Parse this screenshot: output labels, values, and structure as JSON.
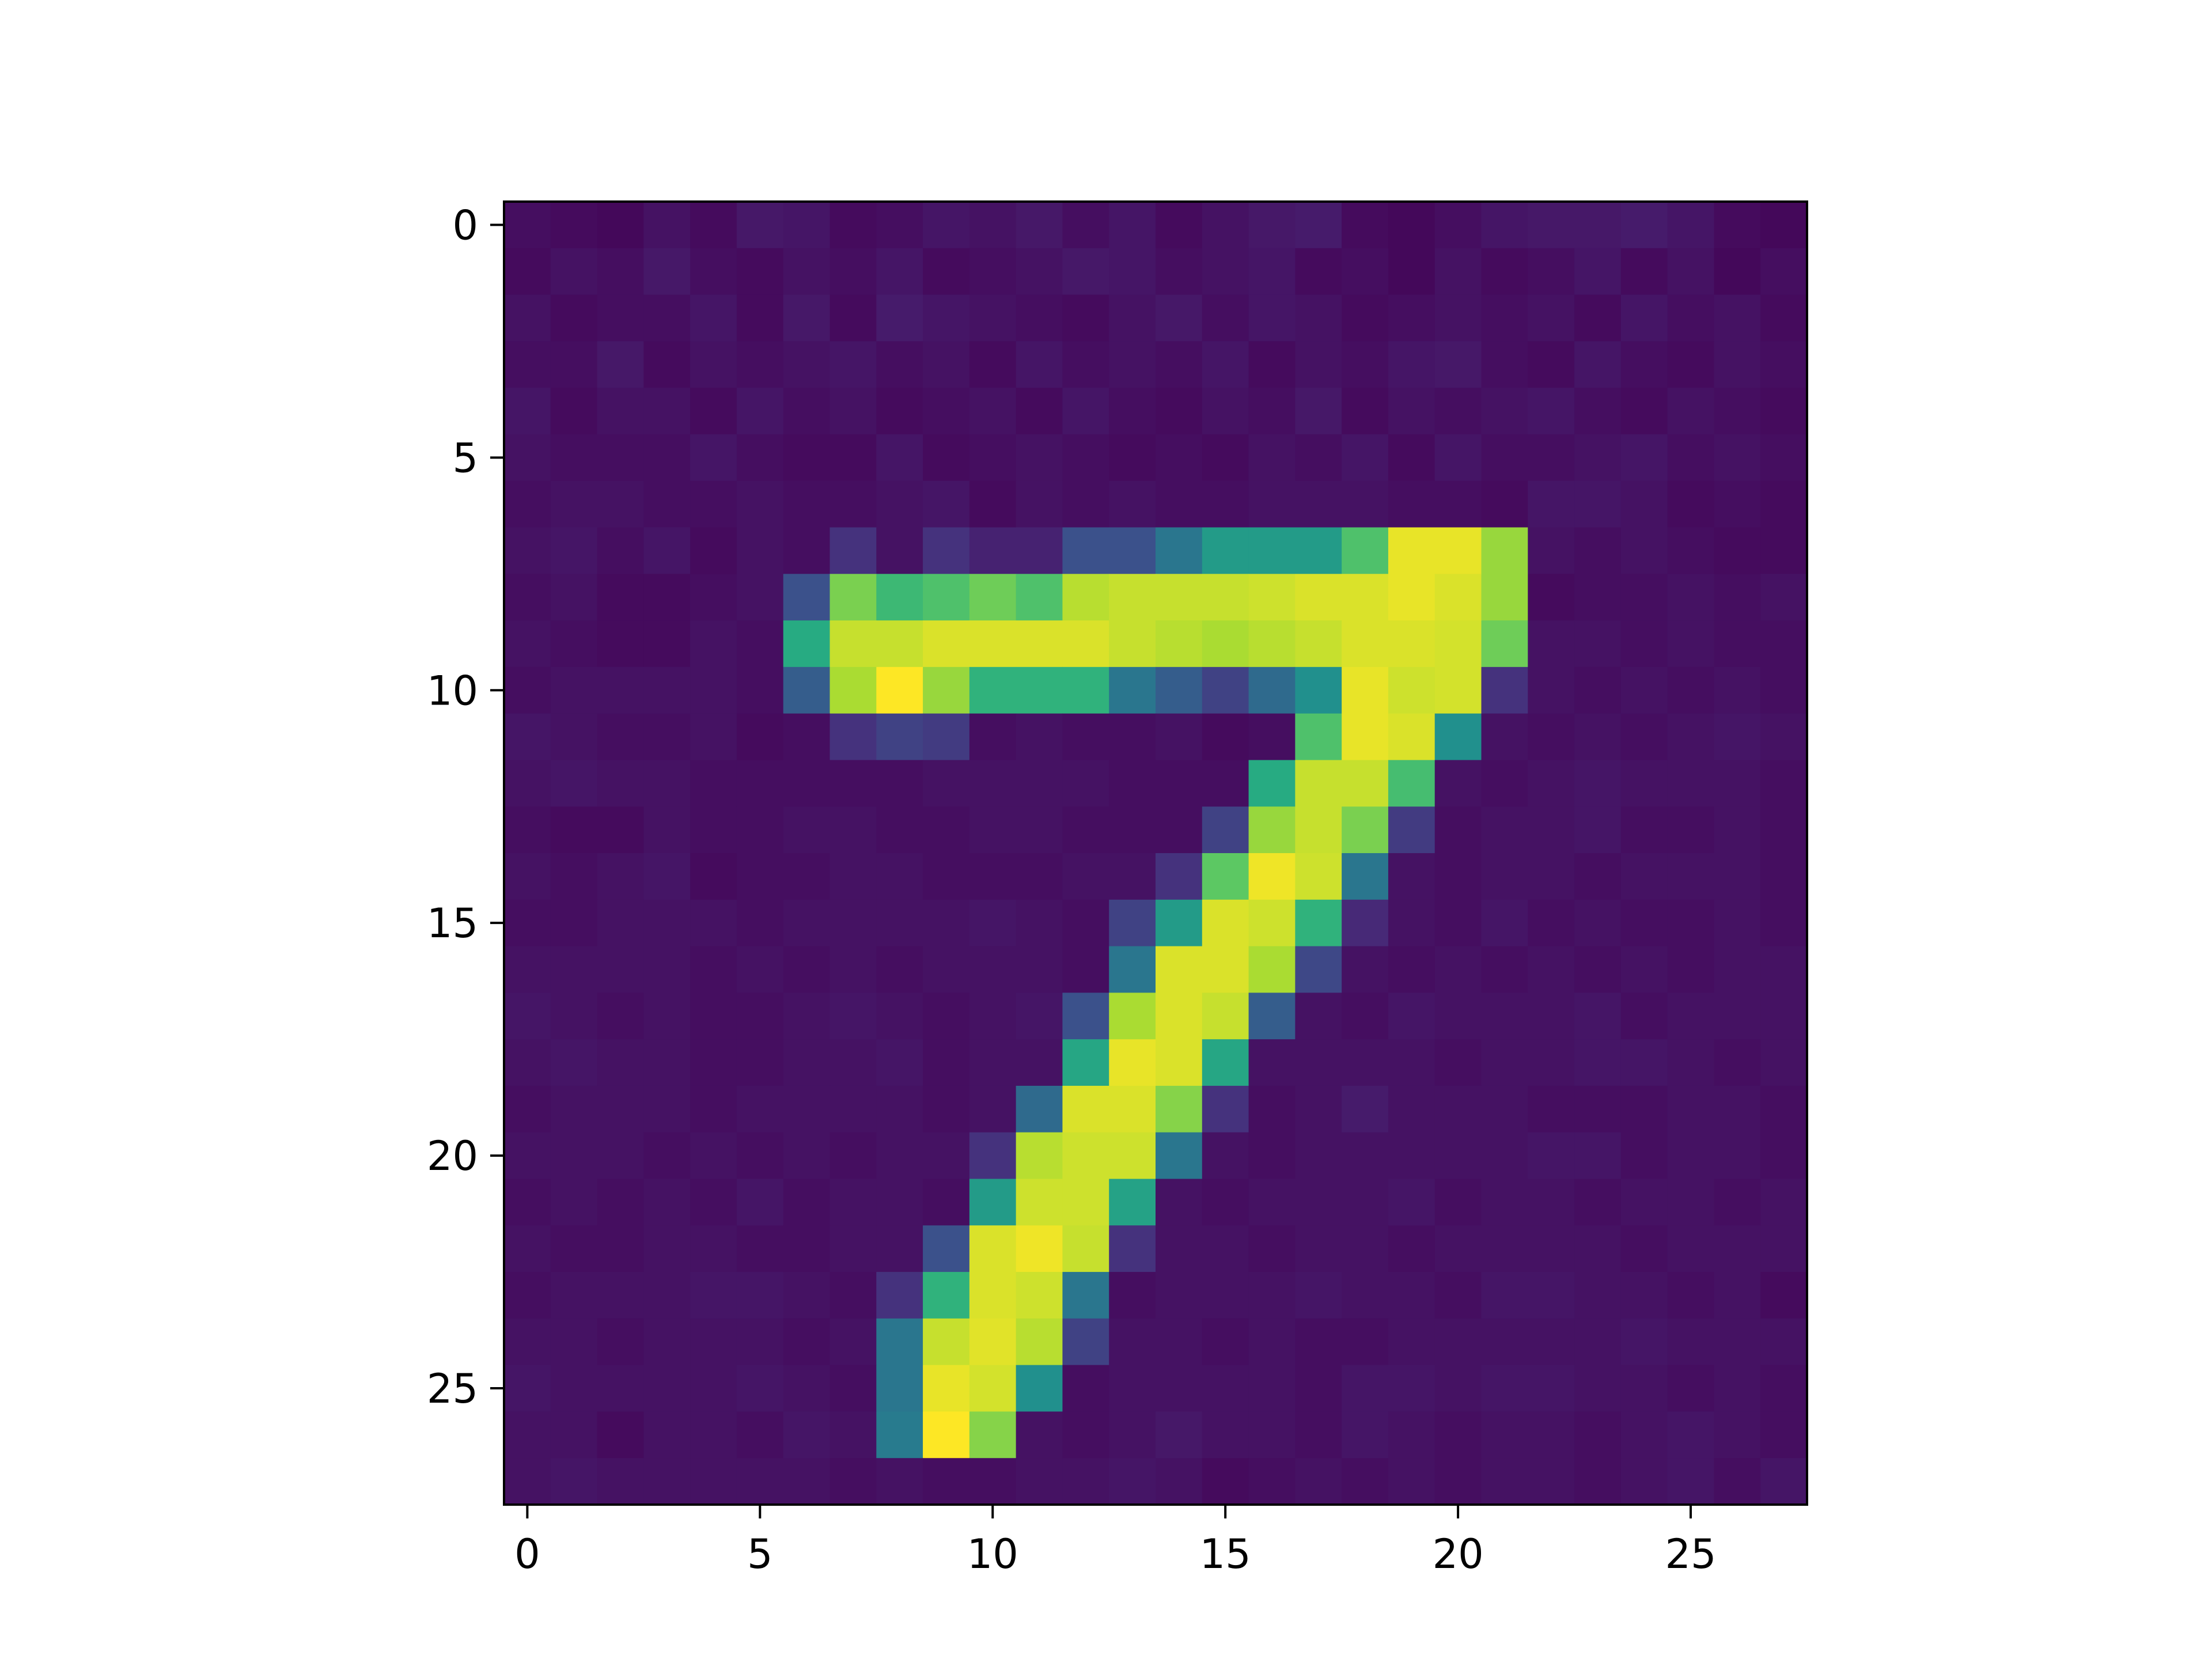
{
  "chart_data": {
    "type": "heatmap",
    "colormap": "viridis",
    "rows": 28,
    "cols": 28,
    "xlim": [
      -0.5,
      27.5
    ],
    "ylim": [
      27.5,
      -0.5
    ],
    "x_ticks": [
      0,
      5,
      10,
      15,
      20,
      25
    ],
    "y_ticks": [
      0,
      5,
      10,
      15,
      20,
      25
    ],
    "x_tick_labels": [
      "0",
      "5",
      "10",
      "15",
      "20",
      "25"
    ],
    "y_tick_labels": [
      "0",
      "5",
      "10",
      "15",
      "20",
      "25"
    ],
    "grid": false,
    "background_level": 0.04,
    "values": [
      [
        0.04,
        0.03,
        0.02,
        0.05,
        0.03,
        0.07,
        0.06,
        0.03,
        0.04,
        0.06,
        0.05,
        0.07,
        0.04,
        0.06,
        0.03,
        0.05,
        0.07,
        0.08,
        0.03,
        0.02,
        0.04,
        0.06,
        0.07,
        0.07,
        0.08,
        0.06,
        0.03,
        0.02
      ],
      [
        0.03,
        0.05,
        0.04,
        0.07,
        0.04,
        0.03,
        0.05,
        0.04,
        0.06,
        0.03,
        0.04,
        0.05,
        0.07,
        0.06,
        0.04,
        0.05,
        0.06,
        0.03,
        0.04,
        0.02,
        0.05,
        0.03,
        0.04,
        0.06,
        0.03,
        0.05,
        0.02,
        0.04
      ],
      [
        0.05,
        0.03,
        0.04,
        0.04,
        0.06,
        0.03,
        0.07,
        0.03,
        0.08,
        0.06,
        0.05,
        0.04,
        0.03,
        0.05,
        0.07,
        0.04,
        0.06,
        0.05,
        0.03,
        0.04,
        0.05,
        0.04,
        0.05,
        0.03,
        0.06,
        0.04,
        0.05,
        0.03
      ],
      [
        0.04,
        0.04,
        0.07,
        0.03,
        0.05,
        0.04,
        0.05,
        0.06,
        0.04,
        0.05,
        0.03,
        0.06,
        0.04,
        0.05,
        0.04,
        0.06,
        0.03,
        0.05,
        0.04,
        0.06,
        0.07,
        0.04,
        0.03,
        0.06,
        0.04,
        0.03,
        0.05,
        0.04
      ],
      [
        0.06,
        0.03,
        0.05,
        0.05,
        0.03,
        0.06,
        0.04,
        0.05,
        0.03,
        0.04,
        0.05,
        0.03,
        0.06,
        0.04,
        0.03,
        0.05,
        0.04,
        0.07,
        0.03,
        0.05,
        0.04,
        0.05,
        0.06,
        0.04,
        0.03,
        0.05,
        0.04,
        0.03
      ],
      [
        0.05,
        0.04,
        0.04,
        0.04,
        0.06,
        0.04,
        0.03,
        0.03,
        0.06,
        0.03,
        0.04,
        0.05,
        0.04,
        0.03,
        0.04,
        0.03,
        0.05,
        0.04,
        0.06,
        0.03,
        0.06,
        0.04,
        0.04,
        0.05,
        0.06,
        0.04,
        0.05,
        0.04
      ],
      [
        0.04,
        0.05,
        0.05,
        0.04,
        0.04,
        0.05,
        0.04,
        0.04,
        0.05,
        0.06,
        0.03,
        0.05,
        0.04,
        0.05,
        0.04,
        0.04,
        0.05,
        0.05,
        0.05,
        0.04,
        0.04,
        0.03,
        0.06,
        0.06,
        0.05,
        0.03,
        0.04,
        0.03
      ],
      [
        0.05,
        0.06,
        0.04,
        0.06,
        0.03,
        0.05,
        0.04,
        0.15,
        0.05,
        0.15,
        0.1,
        0.1,
        0.25,
        0.25,
        0.4,
        0.55,
        0.55,
        0.55,
        0.72,
        0.97,
        0.97,
        0.85,
        0.05,
        0.04,
        0.05,
        0.04,
        0.03,
        0.03
      ],
      [
        0.04,
        0.05,
        0.03,
        0.03,
        0.04,
        0.05,
        0.25,
        0.8,
        0.68,
        0.72,
        0.78,
        0.72,
        0.9,
        0.92,
        0.92,
        0.92,
        0.93,
        0.95,
        0.95,
        0.97,
        0.95,
        0.85,
        0.03,
        0.04,
        0.04,
        0.05,
        0.04,
        0.05
      ],
      [
        0.05,
        0.04,
        0.03,
        0.03,
        0.05,
        0.04,
        0.62,
        0.92,
        0.92,
        0.95,
        0.95,
        0.95,
        0.95,
        0.92,
        0.9,
        0.88,
        0.9,
        0.92,
        0.95,
        0.95,
        0.94,
        0.78,
        0.05,
        0.05,
        0.04,
        0.05,
        0.04,
        0.04
      ],
      [
        0.04,
        0.05,
        0.05,
        0.05,
        0.05,
        0.04,
        0.3,
        0.88,
        1.0,
        0.85,
        0.65,
        0.65,
        0.65,
        0.4,
        0.3,
        0.2,
        0.35,
        0.5,
        0.97,
        0.93,
        0.94,
        0.15,
        0.05,
        0.04,
        0.05,
        0.04,
        0.05,
        0.04
      ],
      [
        0.06,
        0.05,
        0.04,
        0.04,
        0.05,
        0.03,
        0.04,
        0.15,
        0.2,
        0.18,
        0.04,
        0.05,
        0.04,
        0.04,
        0.05,
        0.03,
        0.04,
        0.72,
        0.97,
        0.95,
        0.5,
        0.05,
        0.04,
        0.05,
        0.04,
        0.05,
        0.06,
        0.05
      ],
      [
        0.05,
        0.06,
        0.05,
        0.05,
        0.04,
        0.04,
        0.04,
        0.04,
        0.04,
        0.05,
        0.05,
        0.05,
        0.05,
        0.04,
        0.04,
        0.04,
        0.62,
        0.92,
        0.92,
        0.7,
        0.05,
        0.04,
        0.05,
        0.06,
        0.05,
        0.05,
        0.05,
        0.04
      ],
      [
        0.04,
        0.03,
        0.03,
        0.05,
        0.04,
        0.04,
        0.05,
        0.05,
        0.04,
        0.04,
        0.05,
        0.05,
        0.04,
        0.04,
        0.04,
        0.2,
        0.85,
        0.92,
        0.8,
        0.18,
        0.04,
        0.05,
        0.05,
        0.06,
        0.04,
        0.04,
        0.05,
        0.04
      ],
      [
        0.05,
        0.04,
        0.05,
        0.06,
        0.03,
        0.04,
        0.04,
        0.05,
        0.05,
        0.04,
        0.04,
        0.04,
        0.05,
        0.05,
        0.15,
        0.75,
        0.98,
        0.93,
        0.4,
        0.05,
        0.04,
        0.05,
        0.05,
        0.04,
        0.05,
        0.05,
        0.05,
        0.04
      ],
      [
        0.04,
        0.04,
        0.05,
        0.05,
        0.05,
        0.04,
        0.05,
        0.05,
        0.05,
        0.05,
        0.06,
        0.05,
        0.04,
        0.2,
        0.55,
        0.95,
        0.93,
        0.65,
        0.12,
        0.05,
        0.04,
        0.06,
        0.04,
        0.05,
        0.04,
        0.04,
        0.05,
        0.04
      ],
      [
        0.05,
        0.05,
        0.05,
        0.05,
        0.04,
        0.05,
        0.04,
        0.05,
        0.04,
        0.05,
        0.05,
        0.05,
        0.04,
        0.4,
        0.95,
        0.95,
        0.88,
        0.22,
        0.05,
        0.04,
        0.05,
        0.04,
        0.05,
        0.04,
        0.05,
        0.04,
        0.05,
        0.05
      ],
      [
        0.06,
        0.05,
        0.04,
        0.05,
        0.04,
        0.04,
        0.05,
        0.06,
        0.05,
        0.04,
        0.05,
        0.06,
        0.25,
        0.88,
        0.95,
        0.92,
        0.3,
        0.05,
        0.04,
        0.06,
        0.05,
        0.05,
        0.05,
        0.06,
        0.04,
        0.05,
        0.05,
        0.05
      ],
      [
        0.05,
        0.06,
        0.05,
        0.05,
        0.04,
        0.04,
        0.05,
        0.05,
        0.06,
        0.04,
        0.05,
        0.05,
        0.6,
        0.97,
        0.95,
        0.6,
        0.05,
        0.05,
        0.05,
        0.05,
        0.04,
        0.05,
        0.05,
        0.06,
        0.06,
        0.05,
        0.04,
        0.05
      ],
      [
        0.04,
        0.05,
        0.05,
        0.05,
        0.04,
        0.05,
        0.05,
        0.05,
        0.05,
        0.04,
        0.05,
        0.35,
        0.95,
        0.95,
        0.82,
        0.15,
        0.04,
        0.05,
        0.08,
        0.05,
        0.05,
        0.05,
        0.04,
        0.04,
        0.04,
        0.05,
        0.05,
        0.04
      ],
      [
        0.05,
        0.05,
        0.05,
        0.04,
        0.05,
        0.04,
        0.05,
        0.04,
        0.05,
        0.05,
        0.15,
        0.9,
        0.93,
        0.93,
        0.4,
        0.05,
        0.04,
        0.05,
        0.05,
        0.05,
        0.05,
        0.05,
        0.06,
        0.06,
        0.04,
        0.05,
        0.05,
        0.04
      ],
      [
        0.04,
        0.05,
        0.04,
        0.05,
        0.04,
        0.06,
        0.04,
        0.05,
        0.05,
        0.04,
        0.55,
        0.93,
        0.93,
        0.58,
        0.05,
        0.04,
        0.05,
        0.05,
        0.05,
        0.06,
        0.04,
        0.05,
        0.05,
        0.04,
        0.05,
        0.05,
        0.04,
        0.05
      ],
      [
        0.05,
        0.04,
        0.04,
        0.05,
        0.05,
        0.04,
        0.04,
        0.05,
        0.05,
        0.25,
        0.95,
        0.98,
        0.92,
        0.15,
        0.05,
        0.05,
        0.04,
        0.05,
        0.05,
        0.04,
        0.05,
        0.05,
        0.05,
        0.05,
        0.04,
        0.05,
        0.05,
        0.05
      ],
      [
        0.04,
        0.05,
        0.05,
        0.05,
        0.06,
        0.06,
        0.05,
        0.04,
        0.15,
        0.65,
        0.95,
        0.93,
        0.4,
        0.04,
        0.05,
        0.05,
        0.05,
        0.06,
        0.05,
        0.05,
        0.04,
        0.06,
        0.06,
        0.05,
        0.05,
        0.04,
        0.05,
        0.03
      ],
      [
        0.05,
        0.05,
        0.04,
        0.05,
        0.05,
        0.05,
        0.04,
        0.05,
        0.4,
        0.92,
        0.96,
        0.9,
        0.2,
        0.05,
        0.05,
        0.04,
        0.05,
        0.04,
        0.04,
        0.05,
        0.05,
        0.05,
        0.05,
        0.05,
        0.06,
        0.05,
        0.05,
        0.05
      ],
      [
        0.06,
        0.05,
        0.05,
        0.05,
        0.05,
        0.06,
        0.05,
        0.04,
        0.4,
        0.97,
        0.94,
        0.5,
        0.04,
        0.05,
        0.05,
        0.05,
        0.05,
        0.04,
        0.06,
        0.06,
        0.05,
        0.06,
        0.06,
        0.05,
        0.05,
        0.04,
        0.05,
        0.04
      ],
      [
        0.05,
        0.05,
        0.03,
        0.05,
        0.05,
        0.04,
        0.06,
        0.05,
        0.42,
        1.0,
        0.82,
        0.05,
        0.04,
        0.05,
        0.07,
        0.05,
        0.05,
        0.04,
        0.06,
        0.05,
        0.04,
        0.05,
        0.05,
        0.04,
        0.05,
        0.06,
        0.05,
        0.04
      ],
      [
        0.05,
        0.06,
        0.05,
        0.05,
        0.05,
        0.05,
        0.05,
        0.04,
        0.05,
        0.04,
        0.04,
        0.05,
        0.05,
        0.06,
        0.05,
        0.03,
        0.04,
        0.05,
        0.04,
        0.05,
        0.04,
        0.05,
        0.05,
        0.04,
        0.05,
        0.06,
        0.04,
        0.06
      ]
    ]
  }
}
